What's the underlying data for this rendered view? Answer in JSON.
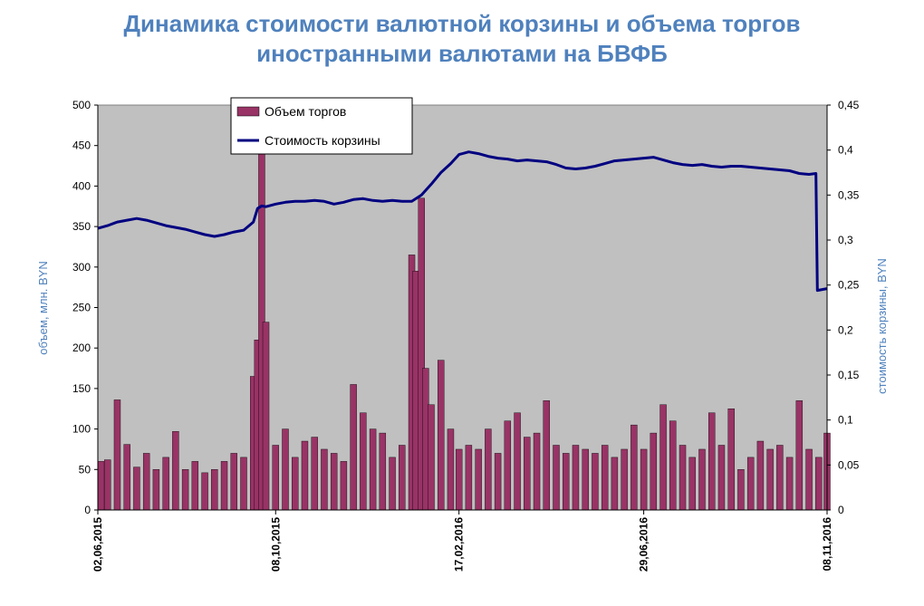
{
  "chart_data": {
    "type": "bar+line",
    "title_line1": "Динамика стоимости валютной корзины и объема торгов",
    "title_line2": "иностранными валютами на БВФБ",
    "ylabel_left": "объем, млн. BYN",
    "ylabel_right": "стоимость корзины, BYN",
    "ylim_left": [
      0,
      500
    ],
    "ylim_right": [
      0,
      0.45
    ],
    "yticks_left": [
      "0",
      "50",
      "100",
      "150",
      "200",
      "250",
      "300",
      "350",
      "400",
      "450",
      "500"
    ],
    "yticks_right": [
      "0",
      "0,05",
      "0,1",
      "0,15",
      "0,2",
      "0,25",
      "0,3",
      "0,35",
      "0,4",
      "0,45"
    ],
    "x_range": [
      "02.06.2015",
      "08.11.2016"
    ],
    "xticks": [
      {
        "label": "02,06,2015",
        "date": "2015-06-02"
      },
      {
        "label": "08,10,2015",
        "date": "2015-10-08"
      },
      {
        "label": "17,02,2016",
        "date": "2016-02-17"
      },
      {
        "label": "29,06,2016",
        "date": "2016-06-29"
      },
      {
        "label": "08,11,2016",
        "date": "2016-11-08"
      }
    ],
    "plot_background": "#c0c0c0",
    "bar_color": "#993366",
    "line_color": "#000080",
    "legend_position": "top-left",
    "series": [
      {
        "name": "Объем торгов",
        "kind": "bar",
        "axis": "left",
        "points": [
          [
            "2015-06-02",
            60
          ],
          [
            "2015-06-09",
            62
          ],
          [
            "2015-06-16",
            136
          ],
          [
            "2015-06-23",
            81
          ],
          [
            "2015-06-30",
            53
          ],
          [
            "2015-07-07",
            70
          ],
          [
            "2015-07-14",
            50
          ],
          [
            "2015-07-21",
            65
          ],
          [
            "2015-07-28",
            97
          ],
          [
            "2015-08-04",
            50
          ],
          [
            "2015-08-11",
            60
          ],
          [
            "2015-08-18",
            46
          ],
          [
            "2015-08-25",
            50
          ],
          [
            "2015-09-01",
            60
          ],
          [
            "2015-09-08",
            70
          ],
          [
            "2015-09-15",
            65
          ],
          [
            "2015-09-22",
            165
          ],
          [
            "2015-09-25",
            210
          ],
          [
            "2015-09-28",
            453
          ],
          [
            "2015-10-01",
            232
          ],
          [
            "2015-10-08",
            80
          ],
          [
            "2015-10-15",
            100
          ],
          [
            "2015-10-22",
            65
          ],
          [
            "2015-10-29",
            85
          ],
          [
            "2015-11-05",
            90
          ],
          [
            "2015-11-12",
            75
          ],
          [
            "2015-11-19",
            70
          ],
          [
            "2015-11-26",
            60
          ],
          [
            "2015-12-03",
            155
          ],
          [
            "2015-12-10",
            120
          ],
          [
            "2015-12-17",
            100
          ],
          [
            "2015-12-24",
            95
          ],
          [
            "2015-12-31",
            65
          ],
          [
            "2016-01-07",
            80
          ],
          [
            "2016-01-14",
            315
          ],
          [
            "2016-01-17",
            295
          ],
          [
            "2016-01-21",
            385
          ],
          [
            "2016-01-24",
            175
          ],
          [
            "2016-01-28",
            130
          ],
          [
            "2016-02-04",
            185
          ],
          [
            "2016-02-11",
            100
          ],
          [
            "2016-02-17",
            75
          ],
          [
            "2016-02-24",
            80
          ],
          [
            "2016-03-02",
            75
          ],
          [
            "2016-03-09",
            100
          ],
          [
            "2016-03-16",
            70
          ],
          [
            "2016-03-23",
            110
          ],
          [
            "2016-03-30",
            120
          ],
          [
            "2016-04-06",
            90
          ],
          [
            "2016-04-13",
            95
          ],
          [
            "2016-04-20",
            135
          ],
          [
            "2016-04-27",
            80
          ],
          [
            "2016-05-04",
            70
          ],
          [
            "2016-05-11",
            80
          ],
          [
            "2016-05-18",
            75
          ],
          [
            "2016-05-25",
            70
          ],
          [
            "2016-06-01",
            80
          ],
          [
            "2016-06-08",
            65
          ],
          [
            "2016-06-15",
            75
          ],
          [
            "2016-06-22",
            105
          ],
          [
            "2016-06-29",
            75
          ],
          [
            "2016-07-06",
            95
          ],
          [
            "2016-07-13",
            130
          ],
          [
            "2016-07-20",
            110
          ],
          [
            "2016-07-27",
            80
          ],
          [
            "2016-08-03",
            65
          ],
          [
            "2016-08-10",
            75
          ],
          [
            "2016-08-17",
            120
          ],
          [
            "2016-08-24",
            80
          ],
          [
            "2016-08-31",
            125
          ],
          [
            "2016-09-07",
            50
          ],
          [
            "2016-09-14",
            65
          ],
          [
            "2016-09-21",
            85
          ],
          [
            "2016-09-28",
            75
          ],
          [
            "2016-10-05",
            80
          ],
          [
            "2016-10-12",
            65
          ],
          [
            "2016-10-19",
            135
          ],
          [
            "2016-10-26",
            75
          ],
          [
            "2016-11-02",
            65
          ],
          [
            "2016-11-08",
            95
          ]
        ]
      },
      {
        "name": "Стоимость корзины",
        "kind": "line",
        "axis": "right",
        "points": [
          [
            "2015-06-02",
            0.313
          ],
          [
            "2015-06-09",
            0.316
          ],
          [
            "2015-06-16",
            0.32
          ],
          [
            "2015-06-23",
            0.322
          ],
          [
            "2015-06-30",
            0.324
          ],
          [
            "2015-07-07",
            0.322
          ],
          [
            "2015-07-14",
            0.319
          ],
          [
            "2015-07-21",
            0.316
          ],
          [
            "2015-07-28",
            0.314
          ],
          [
            "2015-08-04",
            0.312
          ],
          [
            "2015-08-11",
            0.309
          ],
          [
            "2015-08-18",
            0.306
          ],
          [
            "2015-08-25",
            0.304
          ],
          [
            "2015-09-01",
            0.306
          ],
          [
            "2015-09-08",
            0.309
          ],
          [
            "2015-09-15",
            0.311
          ],
          [
            "2015-09-22",
            0.32
          ],
          [
            "2015-09-25",
            0.335
          ],
          [
            "2015-09-28",
            0.338
          ],
          [
            "2015-10-01",
            0.337
          ],
          [
            "2015-10-08",
            0.34
          ],
          [
            "2015-10-15",
            0.342
          ],
          [
            "2015-10-22",
            0.343
          ],
          [
            "2015-10-29",
            0.343
          ],
          [
            "2015-11-05",
            0.344
          ],
          [
            "2015-11-12",
            0.343
          ],
          [
            "2015-11-19",
            0.34
          ],
          [
            "2015-11-26",
            0.342
          ],
          [
            "2015-12-03",
            0.345
          ],
          [
            "2015-12-10",
            0.346
          ],
          [
            "2015-12-17",
            0.344
          ],
          [
            "2015-12-24",
            0.343
          ],
          [
            "2015-12-31",
            0.344
          ],
          [
            "2016-01-07",
            0.343
          ],
          [
            "2016-01-14",
            0.343
          ],
          [
            "2016-01-21",
            0.35
          ],
          [
            "2016-01-28",
            0.362
          ],
          [
            "2016-02-04",
            0.375
          ],
          [
            "2016-02-11",
            0.385
          ],
          [
            "2016-02-17",
            0.395
          ],
          [
            "2016-02-24",
            0.398
          ],
          [
            "2016-03-02",
            0.396
          ],
          [
            "2016-03-09",
            0.393
          ],
          [
            "2016-03-16",
            0.391
          ],
          [
            "2016-03-23",
            0.39
          ],
          [
            "2016-03-30",
            0.388
          ],
          [
            "2016-04-06",
            0.389
          ],
          [
            "2016-04-13",
            0.388
          ],
          [
            "2016-04-20",
            0.387
          ],
          [
            "2016-04-27",
            0.384
          ],
          [
            "2016-05-04",
            0.38
          ],
          [
            "2016-05-11",
            0.379
          ],
          [
            "2016-05-18",
            0.38
          ],
          [
            "2016-05-25",
            0.382
          ],
          [
            "2016-06-01",
            0.385
          ],
          [
            "2016-06-08",
            0.388
          ],
          [
            "2016-06-15",
            0.389
          ],
          [
            "2016-06-22",
            0.39
          ],
          [
            "2016-06-29",
            0.391
          ],
          [
            "2016-07-06",
            0.392
          ],
          [
            "2016-07-13",
            0.389
          ],
          [
            "2016-07-20",
            0.386
          ],
          [
            "2016-07-27",
            0.384
          ],
          [
            "2016-08-03",
            0.383
          ],
          [
            "2016-08-10",
            0.384
          ],
          [
            "2016-08-17",
            0.382
          ],
          [
            "2016-08-24",
            0.381
          ],
          [
            "2016-08-31",
            0.382
          ],
          [
            "2016-09-07",
            0.382
          ],
          [
            "2016-09-14",
            0.381
          ],
          [
            "2016-09-21",
            0.38
          ],
          [
            "2016-09-28",
            0.379
          ],
          [
            "2016-10-05",
            0.378
          ],
          [
            "2016-10-12",
            0.377
          ],
          [
            "2016-10-19",
            0.374
          ],
          [
            "2016-10-26",
            0.373
          ],
          [
            "2016-10-31",
            0.374
          ],
          [
            "2016-11-01",
            0.244
          ],
          [
            "2016-11-08",
            0.246
          ]
        ]
      }
    ]
  }
}
